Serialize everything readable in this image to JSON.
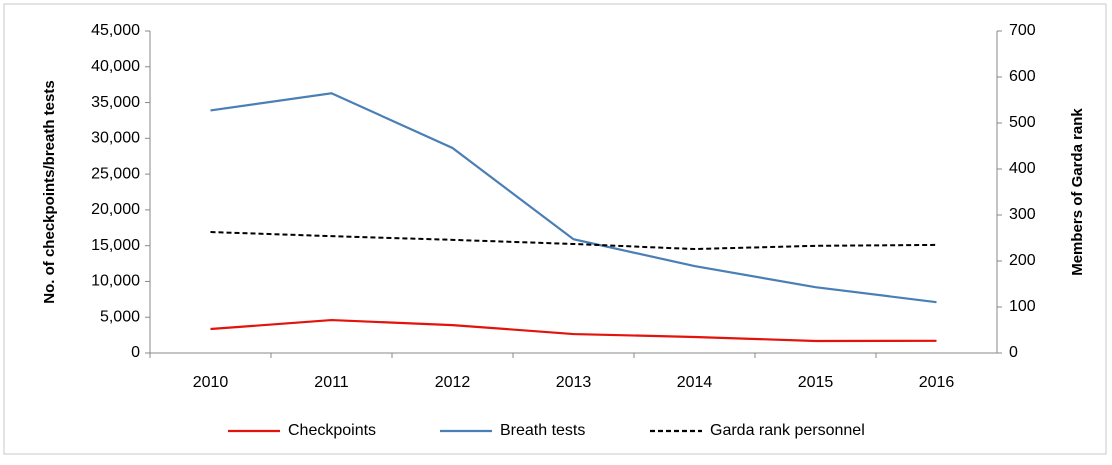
{
  "chart_data": {
    "type": "line",
    "categories": [
      "2010",
      "2011",
      "2012",
      "2013",
      "2014",
      "2015",
      "2016"
    ],
    "ylabel": "No. of checkpoints/breath tests",
    "y2label": "Members of Garda rank",
    "ylim": [
      0,
      45000
    ],
    "yticks": [
      0,
      {
        "value": 5000,
        "label": "5,000"
      },
      {
        "value": 10000,
        "label": "10,000"
      },
      {
        "value": 15000,
        "label": "15,000"
      },
      {
        "value": 20000,
        "label": "20,000"
      },
      {
        "value": 25000,
        "label": "25,000"
      },
      {
        "value": 30000,
        "label": "30,000"
      },
      {
        "value": 35000,
        "label": "35,000"
      },
      {
        "value": 40000,
        "label": "40,000"
      },
      {
        "value": 45000,
        "label": "45,000"
      }
    ],
    "y2lim": [
      0,
      700
    ],
    "y2ticks": [
      0,
      100,
      200,
      300,
      400,
      500,
      600,
      700
    ],
    "legend": "bottom",
    "series": [
      {
        "name": "Checkpoints",
        "color": "#e3120b",
        "dash": "solid",
        "values": [
          3350,
          4600,
          3900,
          2650,
          2240,
          1680,
          1700
        ]
      },
      {
        "name": "Breath tests",
        "color": "#4a7fb5",
        "dash": "solid",
        "values": [
          33900,
          36300,
          28650,
          15900,
          12150,
          9200,
          7100
        ]
      },
      {
        "name": "Garda rank personnel",
        "color": "#000000",
        "dash": "dashed",
        "axis": "y2",
        "values": [
          263,
          254,
          246,
          237,
          226,
          233,
          235
        ]
      }
    ]
  }
}
